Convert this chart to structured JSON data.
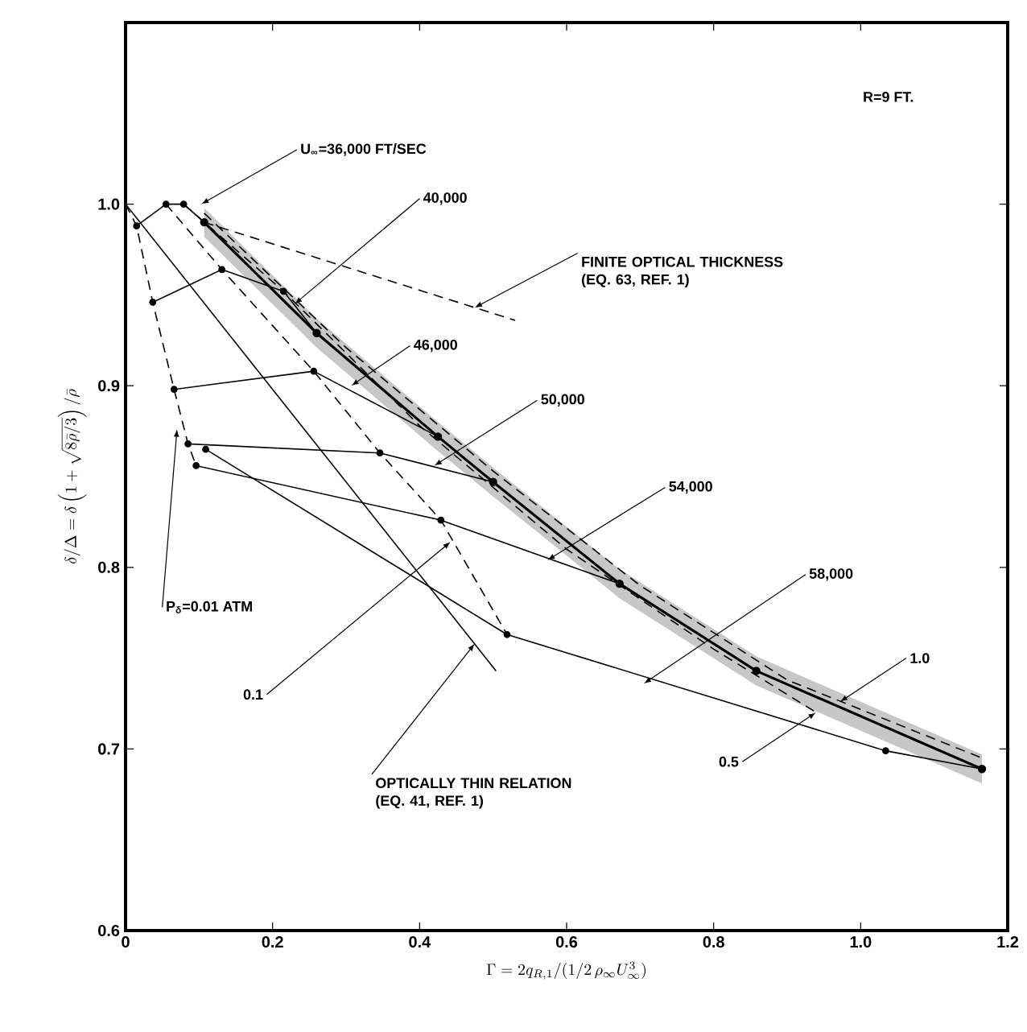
{
  "chart_data": {
    "type": "line",
    "xlabel": "\\Gamma=2q_{R,1}/(1/2\\,\\rho_\\infty U_\\infty^3)",
    "ylabel": "\\delta/\\Delta=\\delta\\left(1+\\sqrt{8\\bar{\\rho}/3}\\right)/\\bar{\\rho}",
    "xlim": [
      0,
      1.2
    ],
    "ylim": [
      0.6,
      1.1
    ],
    "xticks": [
      0,
      0.2,
      0.4,
      0.6,
      0.8,
      {
        "value": 1.0,
        "label": "1.0"
      },
      1.2
    ],
    "yticks": [
      0.6,
      0.7,
      0.8,
      0.9,
      {
        "value": 1.0,
        "label": "1.0"
      }
    ],
    "grid": false,
    "series": [
      {
        "color": "#000000",
        "line_style": "solid",
        "marker": "circle",
        "x": [
          0.015,
          0.055,
          0.079,
          0.107
        ],
        "values": [
          0.988,
          1.0,
          1.0,
          0.99
        ]
      },
      {
        "color": "#000000",
        "line_style": "solid",
        "marker": "circle",
        "x": [
          0.037,
          0.131,
          0.215,
          0.26
        ],
        "values": [
          0.946,
          0.964,
          0.952,
          0.929
        ]
      },
      {
        "color": "#000000",
        "line_style": "solid",
        "marker": "circle",
        "x": [
          0.066,
          0.256,
          0.425
        ],
        "values": [
          0.898,
          0.908,
          0.872
        ]
      },
      {
        "color": "#000000",
        "line_style": "solid",
        "marker": "circle",
        "x": [
          0.085,
          0.346,
          0.5
        ],
        "values": [
          0.868,
          0.863,
          0.847
        ]
      },
      {
        "color": "#000000",
        "line_style": "solid",
        "marker": "circle",
        "x": [
          0.096,
          0.429,
          0.672
        ],
        "values": [
          0.856,
          0.826,
          0.791
        ]
      },
      {
        "color": "#000000",
        "line_style": "solid",
        "marker": "circle",
        "x": [
          0.109,
          0.519,
          1.034,
          1.165
        ],
        "values": [
          0.865,
          0.763,
          0.699,
          0.689
        ]
      },
      {
        "color": "#000000",
        "line_style": "solid",
        "marker": "circle",
        "x": [
          0.107,
          0.26,
          0.425,
          0.5,
          0.672,
          0.858,
          1.165
        ],
        "values": [
          0.99,
          0.929,
          0.872,
          0.847,
          0.791,
          0.743,
          0.689
        ],
        "lower": [
          0.982,
          0.921,
          0.864,
          0.839,
          0.783,
          0.735,
          0.681
        ],
        "upper": [
          0.998,
          0.937,
          0.88,
          0.855,
          0.799,
          0.751,
          0.697
        ]
      },
      {
        "color": "#000000",
        "line_style": "dashed",
        "marker": "none",
        "x": [
          0,
          0.015,
          0.037,
          0.066,
          0.085,
          0.096
        ],
        "values": [
          1.0,
          0.988,
          0.946,
          0.898,
          0.868,
          0.856
        ]
      },
      {
        "color": "#000000",
        "line_style": "dashed",
        "marker": "none",
        "x": [
          0.055,
          0.131,
          0.256,
          0.346,
          0.429,
          0.519
        ],
        "values": [
          1.0,
          0.964,
          0.908,
          0.863,
          0.826,
          0.763
        ]
      },
      {
        "color": "#000000",
        "line_style": "dashed",
        "marker": "none",
        "x": [
          0.079,
          0.215,
          0.4,
          0.6,
          0.8,
          0.94
        ],
        "values": [
          1.0,
          0.952,
          0.878,
          0.81,
          0.755,
          0.72
        ]
      },
      {
        "color": "#000000",
        "line_style": "dashed",
        "marker": "none",
        "x": [
          0.107,
          0.3,
          0.5,
          0.7,
          0.9,
          1.165
        ],
        "values": [
          0.995,
          0.921,
          0.853,
          0.79,
          0.738,
          0.695
        ]
      },
      {
        "color": "#000000",
        "line_style": "dashed",
        "marker": "none",
        "x": [
          0.107,
          0.53
        ],
        "values": [
          0.99,
          0.936
        ]
      },
      {
        "color": "#000000",
        "line_style": "solid",
        "marker": "none",
        "x": [
          0,
          0.504
        ],
        "values": [
          1.0,
          0.743
        ]
      }
    ],
    "annotations": [
      {
        "text": "U$_{∞}$=36,000 FT/SEC",
        "x": 0.103,
        "y": 1.0
      },
      {
        "text": "40,000",
        "x": 0.23,
        "y": 0.945
      },
      {
        "text": "46,000",
        "x": 0.307,
        "y": 0.9
      },
      {
        "text": "50,000",
        "x": 0.42,
        "y": 0.856
      },
      {
        "text": "54,000",
        "x": 0.574,
        "y": 0.804
      },
      {
        "text": "58,000",
        "x": 0.705,
        "y": 0.736
      },
      {
        "text": "FINITE OPTICAL THICKNESS (EQ. 63, REF. 1)",
        "x": 0.475,
        "y": 0.943
      },
      {
        "text": "1.0",
        "x": 0.972,
        "y": 0.726
      },
      {
        "text": "0.5",
        "x": 0.939,
        "y": 0.72
      },
      {
        "text": "P$_{δ}$=0.01 ATM",
        "x": 0.07,
        "y": 0.876
      },
      {
        "text": "0.1",
        "x": 0.442,
        "y": 0.814
      },
      {
        "text": "OPTICALLY THIN RELATION (EQ. 41, REF. 1)",
        "x": 0.475,
        "y": 0.758
      },
      "R=9 FT."
    ]
  }
}
